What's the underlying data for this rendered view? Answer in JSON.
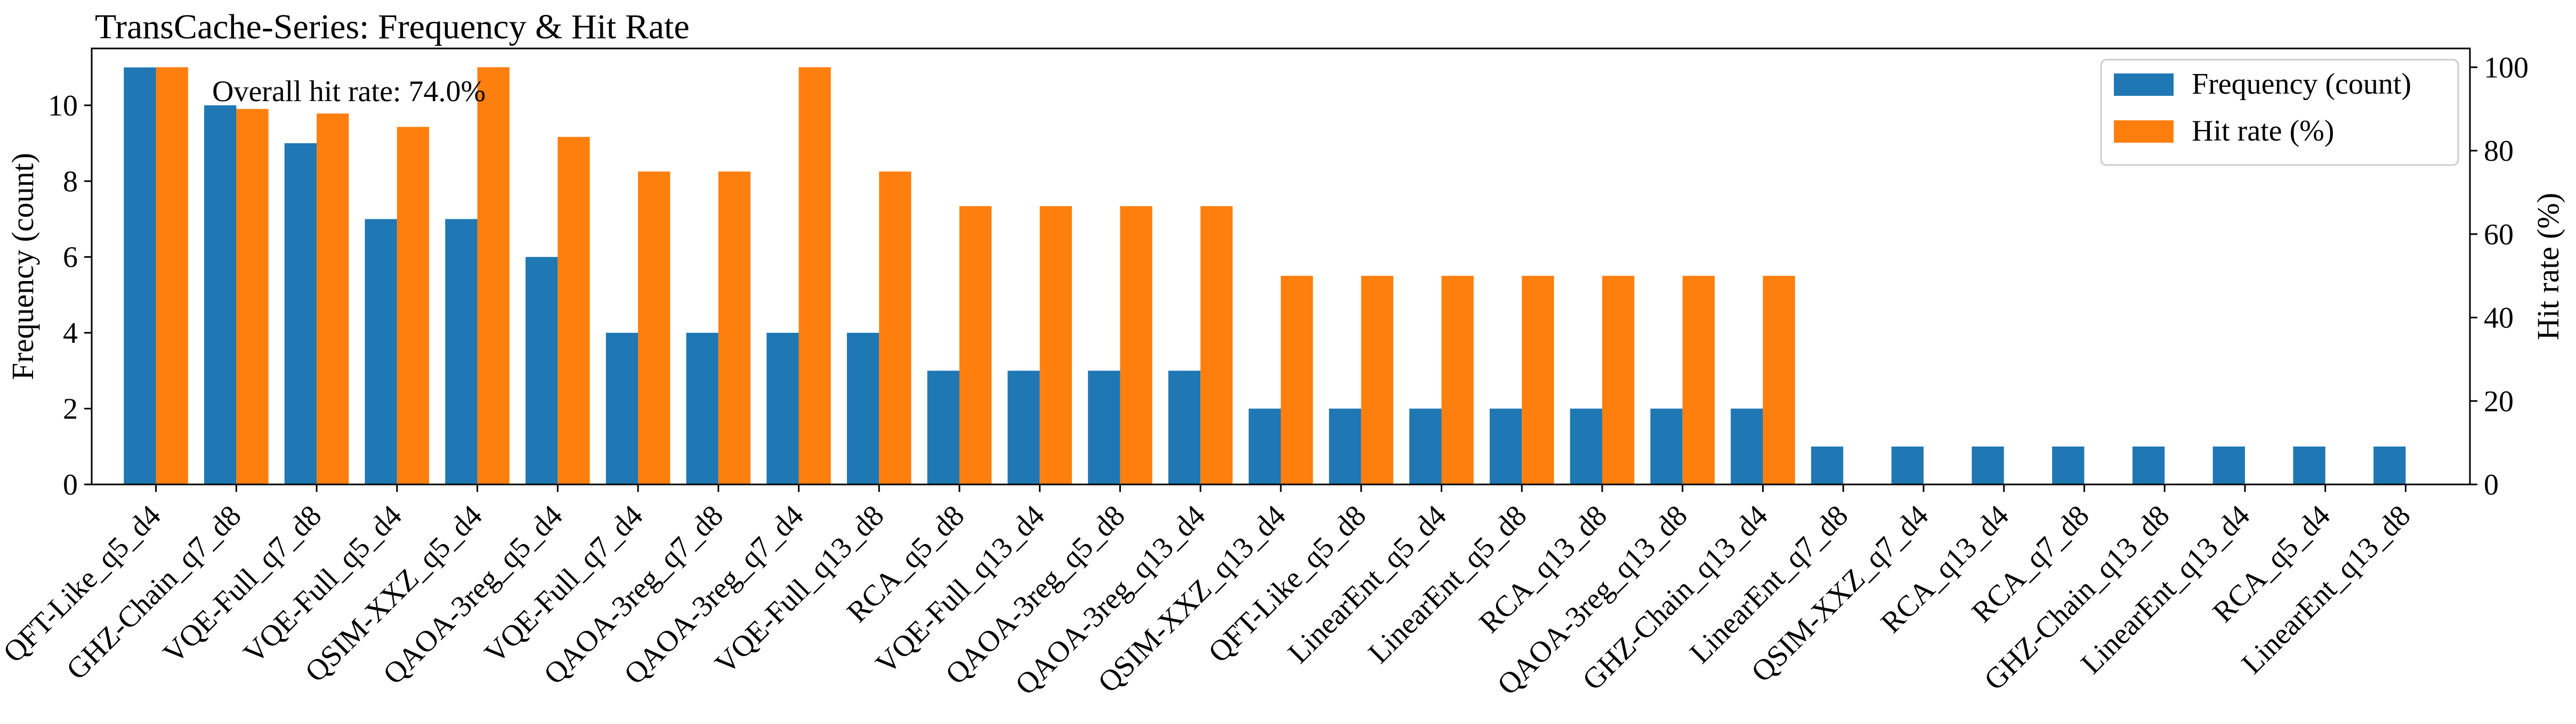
{
  "chart_data": {
    "type": "bar",
    "title": "TransCache-Series: Frequency & Hit Rate",
    "annotation": "Overall hit rate: 74.0%",
    "xlabel": "",
    "ylabel": "Frequency (count)",
    "y2label": "Hit rate (%)",
    "ylim": [
      0,
      11.5
    ],
    "y2lim": [
      0,
      104.5
    ],
    "yticks": [
      "0",
      "2",
      "4",
      "6",
      "8",
      "10"
    ],
    "y2ticks": [
      "0",
      "20",
      "40",
      "60",
      "80",
      "100"
    ],
    "grid": false,
    "legend_position": "top-right",
    "categories": [
      "QFT-Like_q5_d4",
      "GHZ-Chain_q7_d8",
      "VQE-Full_q7_d8",
      "VQE-Full_q5_d4",
      "QSIM-XXZ_q5_d4",
      "QAOA-3reg_q5_d4",
      "VQE-Full_q7_d4",
      "QAOA-3reg_q7_d8",
      "QAOA-3reg_q7_d4",
      "VQE-Full_q13_d8",
      "RCA_q5_d8",
      "VQE-Full_q13_d4",
      "QAOA-3reg_q5_d8",
      "QAOA-3reg_q13_d4",
      "QSIM-XXZ_q13_d4",
      "QFT-Like_q5_d8",
      "LinearEnt_q5_d4",
      "LinearEnt_q5_d8",
      "RCA_q13_d8",
      "QAOA-3reg_q13_d8",
      "GHZ-Chain_q13_d4",
      "LinearEnt_q7_d8",
      "QSIM-XXZ_q7_d4",
      "RCA_q13_d4",
      "RCA_q7_d8",
      "GHZ-Chain_q13_d8",
      "LinearEnt_q13_d4",
      "RCA_q5_d4",
      "LinearEnt_q13_d8"
    ],
    "series": [
      {
        "name": "Frequency (count)",
        "axis": "left",
        "color": "#1f77b4",
        "values": [
          11,
          10,
          9,
          7,
          7,
          6,
          4,
          4,
          4,
          4,
          3,
          3,
          3,
          3,
          2,
          2,
          2,
          2,
          2,
          2,
          2,
          1,
          1,
          1,
          1,
          1,
          1,
          1,
          1
        ]
      },
      {
        "name": "Hit rate (%)",
        "axis": "right",
        "color": "#ff7f0e",
        "values": [
          100,
          90,
          88.9,
          85.7,
          100,
          83.3,
          75,
          75,
          100,
          75,
          66.7,
          66.7,
          66.7,
          66.7,
          50,
          50,
          50,
          50,
          50,
          50,
          50,
          0,
          0,
          0,
          0,
          0,
          0,
          0,
          0
        ]
      }
    ]
  }
}
